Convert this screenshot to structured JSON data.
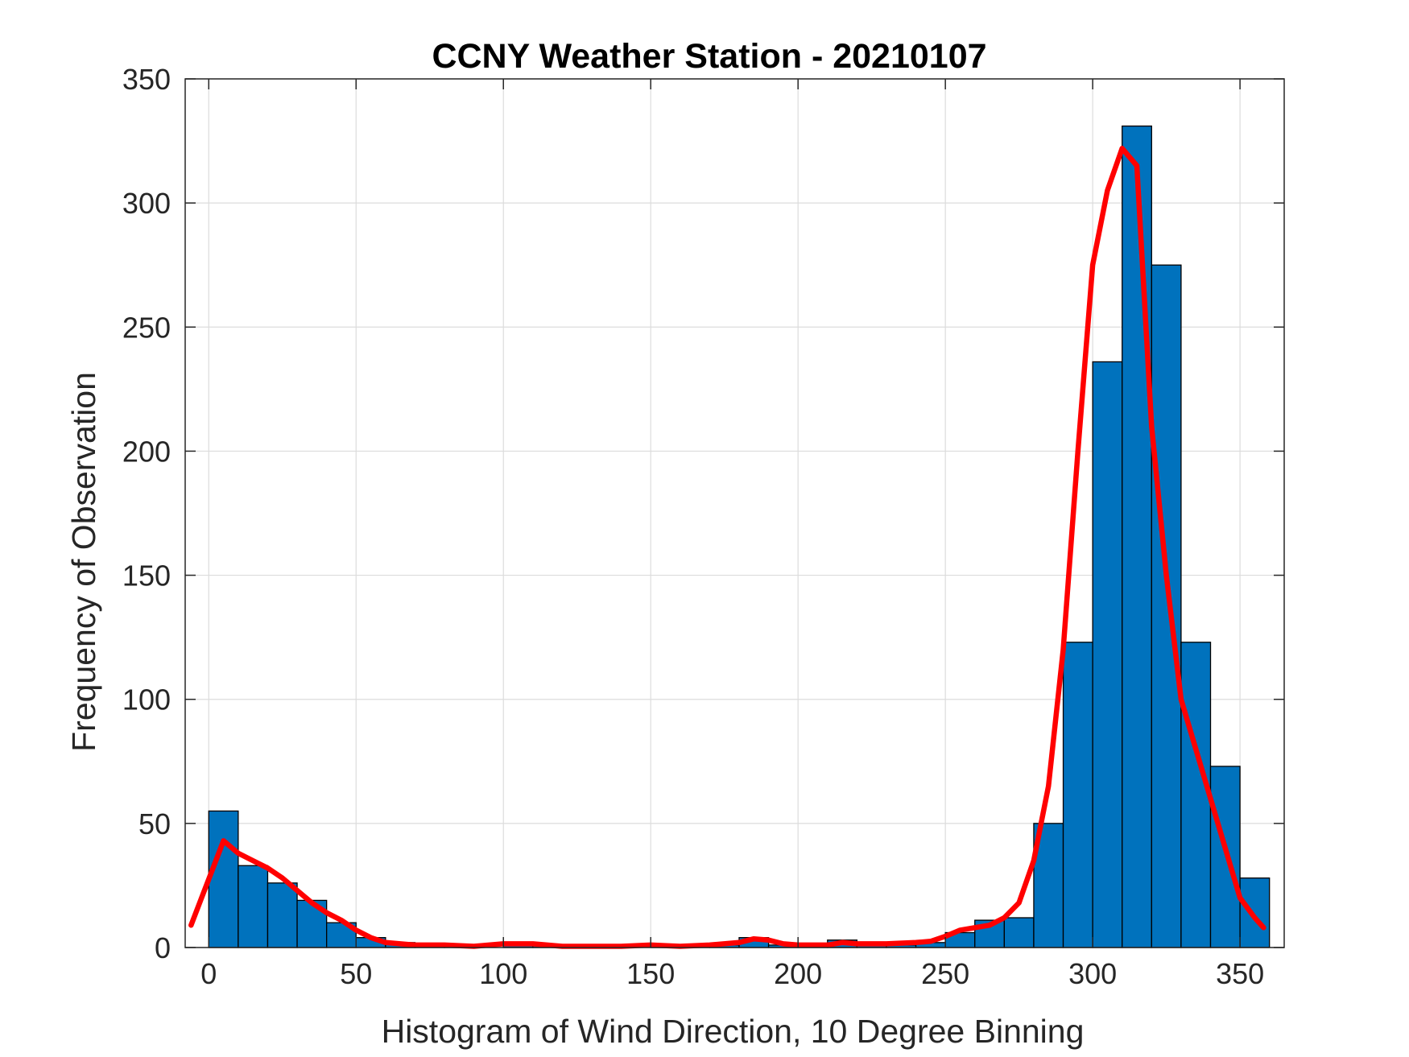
{
  "chart_data": {
    "type": "bar",
    "title": "CCNY Weather Station - 20210107",
    "xlabel": "Histogram of Wind Direction, 10 Degree Binning",
    "ylabel": "Frequency of Observation",
    "xlim": [
      -8,
      365
    ],
    "ylim": [
      0,
      350
    ],
    "xticks": [
      0,
      50,
      100,
      150,
      200,
      250,
      300,
      350
    ],
    "yticks": [
      0,
      50,
      100,
      150,
      200,
      250,
      300,
      350
    ],
    "grid": true,
    "bin_width": 10,
    "bin_edges": [
      0,
      10,
      20,
      30,
      40,
      50,
      60,
      70,
      80,
      90,
      100,
      110,
      120,
      130,
      140,
      150,
      160,
      170,
      180,
      190,
      200,
      210,
      220,
      230,
      240,
      250,
      260,
      270,
      280,
      290,
      300,
      310,
      320,
      330,
      340,
      350,
      360
    ],
    "values": [
      55,
      33,
      26,
      19,
      10,
      4,
      2,
      1,
      1,
      0,
      1,
      1,
      0,
      0,
      0,
      1,
      1,
      1,
      4,
      1,
      1,
      3,
      2,
      1,
      2,
      6,
      11,
      12,
      50,
      123,
      236,
      331,
      275,
      123,
      73,
      28
    ],
    "bar_color": "#0072BD",
    "line_color": "#FF0000",
    "fit_line": {
      "x": [
        -6,
        5,
        10,
        15,
        20,
        25,
        30,
        35,
        40,
        45,
        50,
        55,
        60,
        65,
        70,
        80,
        90,
        100,
        110,
        120,
        130,
        140,
        150,
        160,
        170,
        180,
        185,
        190,
        195,
        200,
        210,
        215,
        220,
        230,
        240,
        245,
        250,
        255,
        260,
        265,
        270,
        275,
        280,
        285,
        290,
        295,
        300,
        305,
        310,
        315,
        320,
        325,
        330,
        335,
        340,
        345,
        350,
        355,
        358
      ],
      "y": [
        9,
        43,
        38,
        35,
        32,
        28,
        23,
        18,
        14,
        11,
        7,
        4,
        2,
        1.5,
        1,
        1,
        0.5,
        1.5,
        1.5,
        0.5,
        0.5,
        0.5,
        1,
        0.5,
        1,
        2,
        3.5,
        3,
        1.5,
        1,
        1,
        2,
        1.5,
        1.5,
        2,
        2.5,
        4.5,
        7,
        8,
        9,
        12,
        18,
        35,
        65,
        120,
        200,
        275,
        305,
        322,
        315,
        210,
        150,
        100,
        80,
        60,
        40,
        20,
        12,
        8
      ]
    }
  }
}
